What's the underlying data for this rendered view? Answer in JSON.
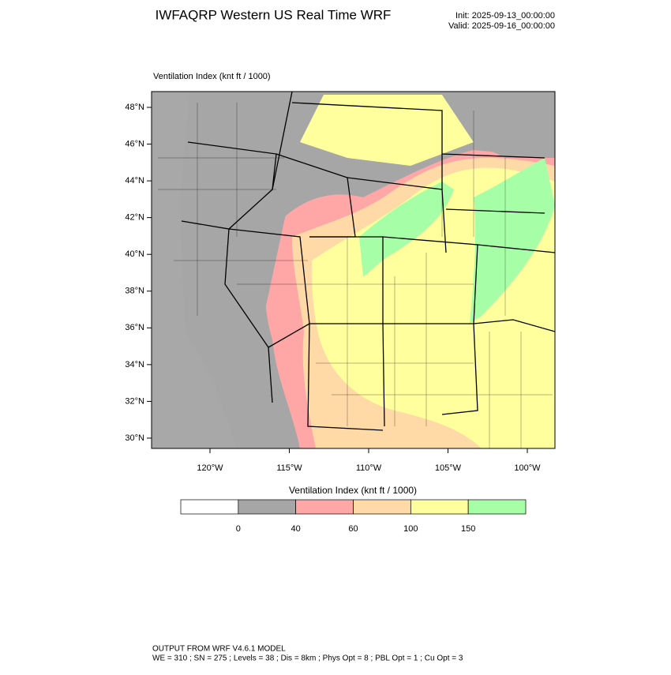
{
  "header": {
    "title": "IWFAQRP Western US Real Time WRF",
    "init": "Init: 2025-09-13_00:00:00",
    "valid": "Valid: 2025-09-16_00:00:00"
  },
  "map": {
    "subtitle": "Ventilation Index   (knt ft / 1000)",
    "lat_labels": [
      "48°N",
      "46°N",
      "44°N",
      "42°N",
      "40°N",
      "38°N",
      "36°N",
      "34°N",
      "32°N",
      "30°N"
    ],
    "lon_labels": [
      "120°W",
      "115°W",
      "110°W",
      "105°W",
      "100°W"
    ]
  },
  "colorbar": {
    "title": "Ventilation Index  (knt ft / 1000)",
    "colors": [
      "#ffffff",
      "#a6a6a6",
      "#ffa6a6",
      "#ffd9a6",
      "#ffff9e",
      "#a6ffa6"
    ],
    "tick_labels": [
      "0",
      "40",
      "60",
      "100",
      "150"
    ]
  },
  "footer": {
    "line1": "OUTPUT FROM WRF V4.6.1 MODEL",
    "line2": "WE = 310 ; SN = 275 ; Levels = 38 ; Dis = 8km ; Phys Opt = 8 ; PBL Opt = 1 ; Cu Opt = 3"
  }
}
